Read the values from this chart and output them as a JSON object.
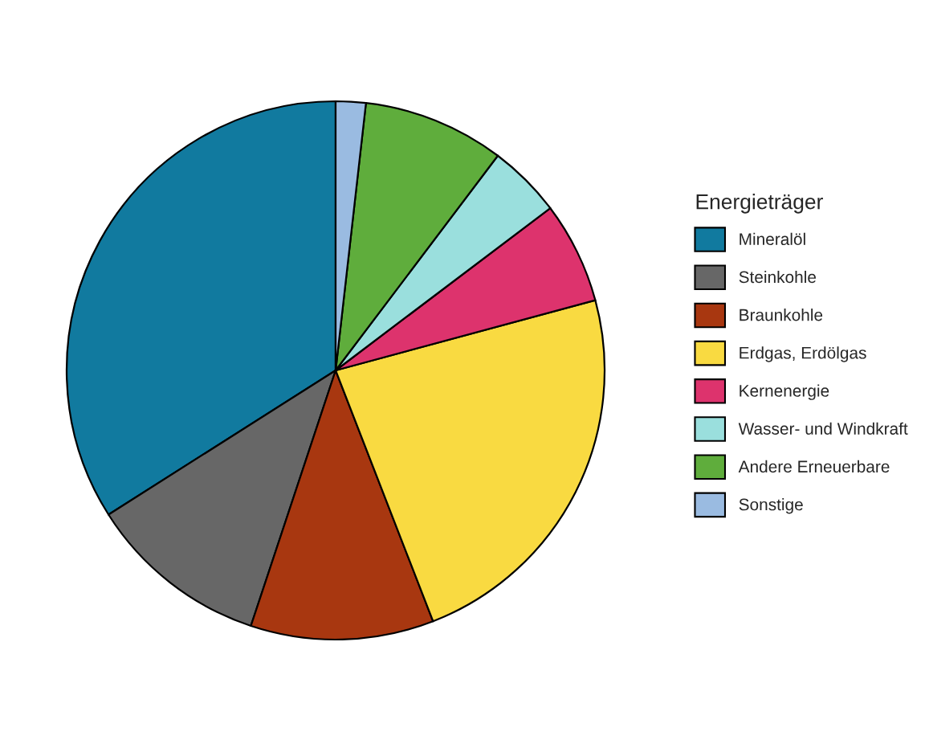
{
  "chart_data": {
    "type": "pie",
    "legend_title": "Energieträger",
    "legend": "right",
    "categories": [
      "Mineralöl",
      "Steinkohle",
      "Braunkohle",
      "Erdgas, Erdölgas",
      "Kernenergie",
      "Wasser- und Windkraft",
      "Andere Erneuerbare",
      "Sonstige"
    ],
    "values": [
      34.0,
      10.9,
      11.0,
      23.3,
      6.1,
      4.4,
      8.5,
      1.8
    ],
    "colors": [
      "#117a9f",
      "#676767",
      "#a83710",
      "#f9da41",
      "#dd336d",
      "#9adfdd",
      "#5fad3c",
      "#9abbe1"
    ]
  }
}
